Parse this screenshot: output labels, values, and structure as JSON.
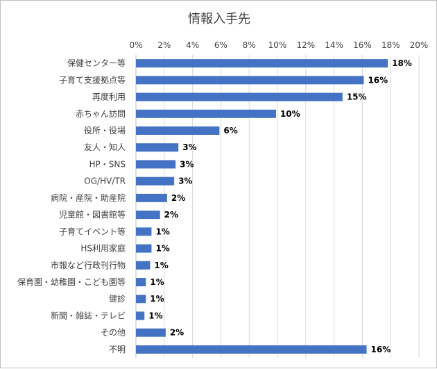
{
  "chart_data": {
    "type": "bar",
    "orientation": "horizontal",
    "title": "情報入手先",
    "xlim": [
      0,
      20
    ],
    "xticks": [
      "0%",
      "2%",
      "4%",
      "6%",
      "8%",
      "10%",
      "12%",
      "14%",
      "16%",
      "18%",
      "20%"
    ],
    "x_axis_position": "top",
    "grid": true,
    "legend": "none",
    "bar_color": "#4472C4",
    "categories": [
      "保健センター等",
      "子育て支援拠点等",
      "再度利用",
      "赤ちゃん訪問",
      "役所・役場",
      "友人・知人",
      "HP・SNS",
      "OG/HV/TR",
      "病院・産院・助産院",
      "児童館・図書館等",
      "子育てイベント等",
      "HS利用家庭",
      "市報など行政刊行物",
      "保育園・幼稚園・こども園等",
      "健診",
      "新聞・雑誌・テレビ",
      "その他",
      "不明"
    ],
    "values": [
      17.8,
      16.1,
      14.6,
      9.9,
      5.9,
      3.0,
      2.8,
      2.7,
      2.2,
      1.7,
      1.1,
      1.1,
      1.0,
      0.7,
      0.7,
      0.6,
      2.1,
      16.3
    ],
    "data_labels": [
      "18%",
      "16%",
      "15%",
      "10%",
      "6%",
      "3%",
      "3%",
      "3%",
      "2%",
      "2%",
      "1%",
      "1%",
      "1%",
      "1%",
      "1%",
      "1%",
      "2%",
      "16%"
    ]
  }
}
